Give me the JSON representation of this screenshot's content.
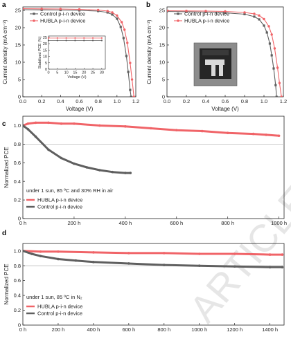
{
  "colors": {
    "hubla": "#f06468",
    "control": "#5f5f5f",
    "refline": "#bdbdbd"
  },
  "watermark": "ARTICLE",
  "chart_data": [
    {
      "id": "a",
      "panel_label": "a",
      "type": "line",
      "xlabel": "Voltage (V)",
      "ylabel": "Current density (mA cm⁻²)",
      "xlim": [
        0,
        1.2
      ],
      "ylim": [
        0,
        26
      ],
      "xticks": [
        0,
        0.2,
        0.4,
        0.6,
        0.8,
        1.0,
        1.2
      ],
      "xtick_labels": [
        "0.0",
        "0.2",
        "0.4",
        "0.6",
        "0.8",
        "1.0",
        "1.2"
      ],
      "yticks": [
        0,
        5,
        10,
        15,
        20,
        25
      ],
      "legend": "top-left",
      "series": [
        {
          "name": "Control p-i-n device",
          "color": "#5f5f5f",
          "x": [
            0,
            0.2,
            0.4,
            0.6,
            0.8,
            0.9,
            0.95,
            1.0,
            1.04,
            1.07,
            1.1,
            1.12,
            1.14,
            1.15
          ],
          "y": [
            25.2,
            25.15,
            25.1,
            25.0,
            24.8,
            24.4,
            23.8,
            22.6,
            20.2,
            17.0,
            11.8,
            7.2,
            2.0,
            0
          ]
        },
        {
          "name": "HUBLA p-i-n device",
          "color": "#f06468",
          "x": [
            0,
            0.2,
            0.4,
            0.6,
            0.8,
            0.9,
            0.95,
            1.0,
            1.05,
            1.08,
            1.11,
            1.14,
            1.16,
            1.18
          ],
          "y": [
            25.5,
            25.45,
            25.4,
            25.3,
            25.1,
            24.8,
            24.4,
            23.5,
            21.6,
            19.4,
            15.6,
            9.8,
            5.0,
            0
          ]
        }
      ],
      "inset": {
        "xlabel": "Voltage (V)",
        "ylabel": "Stabilized PCE (%)",
        "xlim": [
          0,
          32
        ],
        "ylim": [
          0,
          26
        ],
        "xticks": [
          0,
          5,
          10,
          15,
          20,
          25,
          30
        ],
        "yticks": [
          0,
          5,
          10,
          15,
          20,
          25
        ],
        "series": [
          {
            "name": "HUBLA p-i-n device",
            "color": "#f06468",
            "x": [
              0,
              5,
              10,
              15,
              20,
              25,
              30
            ],
            "y": [
              24.4,
              24.4,
              24.4,
              24.4,
              24.4,
              24.4,
              24.4
            ]
          },
          {
            "name": "Control p-i-n device",
            "color": "#5f5f5f",
            "x": [
              0,
              5,
              10,
              15,
              20,
              25,
              30
            ],
            "y": [
              22.5,
              22.5,
              22.5,
              22.5,
              22.5,
              22.5,
              22.5
            ]
          }
        ]
      }
    },
    {
      "id": "b",
      "panel_label": "b",
      "type": "line",
      "xlabel": "Voltage (V)",
      "ylabel": "Current density (mA cm⁻²)",
      "xlim": [
        0,
        1.2
      ],
      "ylim": [
        0,
        26
      ],
      "xticks": [
        0,
        0.2,
        0.4,
        0.6,
        0.8,
        1.0,
        1.2
      ],
      "xtick_labels": [
        "0.0",
        "0.2",
        "0.4",
        "0.6",
        "0.8",
        "1.0",
        "1.2"
      ],
      "yticks": [
        0,
        5,
        10,
        15,
        20,
        25
      ],
      "legend": "top-left",
      "series": [
        {
          "name": "Control p-i-n device",
          "color": "#5f5f5f",
          "x": [
            0,
            0.2,
            0.4,
            0.6,
            0.8,
            0.9,
            0.95,
            1.0,
            1.03,
            1.06,
            1.08,
            1.1,
            1.12,
            1.13
          ],
          "y": [
            24.7,
            24.6,
            24.5,
            24.3,
            23.9,
            23.2,
            22.4,
            20.6,
            18.6,
            15.4,
            12.0,
            8.2,
            3.4,
            0
          ]
        },
        {
          "name": "HUBLA p-i-n device",
          "color": "#f06468",
          "x": [
            0,
            0.2,
            0.4,
            0.6,
            0.8,
            0.9,
            0.95,
            1.0,
            1.05,
            1.08,
            1.11,
            1.14,
            1.16,
            1.18
          ],
          "y": [
            24.9,
            24.85,
            24.8,
            24.7,
            24.4,
            24.0,
            23.5,
            22.5,
            20.4,
            18.0,
            14.0,
            8.4,
            4.0,
            0
          ]
        }
      ],
      "inset_image": "device-photo"
    },
    {
      "id": "c",
      "panel_label": "c",
      "type": "line",
      "xlabel": "",
      "ylabel": "Normalized PCE",
      "xlim": [
        0,
        1020
      ],
      "ylim": [
        0,
        1.1
      ],
      "xticks": [
        0,
        200,
        400,
        600,
        800,
        1000
      ],
      "xtick_labels": [
        "0 h",
        "200 h",
        "400 h",
        "600 h",
        "800 h",
        "1000 h"
      ],
      "yticks": [
        0,
        0.2,
        0.4,
        0.6,
        0.8,
        1.0
      ],
      "ytick_labels": [
        "0",
        "0.2",
        "0.4",
        "0.6",
        "0.8",
        "1.0"
      ],
      "reference_line": 0.8,
      "annotation": "under 1 sun, 85 ºC and 30% RH in air",
      "legend": "bottom-left",
      "series": [
        {
          "name": "HUBLA p-i-n device",
          "color": "#f06468",
          "x": [
            0,
            20,
            50,
            100,
            150,
            200,
            300,
            400,
            500,
            600,
            700,
            800,
            900,
            950,
            1000
          ],
          "y": [
            1.0,
            1.02,
            1.03,
            1.03,
            1.02,
            1.02,
            1.0,
            0.99,
            0.97,
            0.95,
            0.94,
            0.92,
            0.91,
            0.9,
            0.89
          ]
        },
        {
          "name": "Control p-i-n device",
          "color": "#5f5f5f",
          "x": [
            0,
            20,
            50,
            100,
            150,
            200,
            250,
            300,
            350,
            400,
            420
          ],
          "y": [
            1.0,
            0.96,
            0.88,
            0.74,
            0.65,
            0.59,
            0.55,
            0.52,
            0.5,
            0.49,
            0.49
          ]
        }
      ]
    },
    {
      "id": "d",
      "panel_label": "d",
      "type": "line",
      "xlabel": "",
      "ylabel": "Normalized PCE",
      "xlim": [
        0,
        1480
      ],
      "ylim": [
        0,
        1.1
      ],
      "xticks": [
        0,
        200,
        400,
        600,
        800,
        1000,
        1200,
        1400
      ],
      "xtick_labels": [
        "0 h",
        "200 h",
        "400 h",
        "600 h",
        "800 h",
        "1000 h",
        "1200 h",
        "1400 h"
      ],
      "yticks": [
        0,
        0.2,
        0.4,
        0.6,
        0.8,
        1.0
      ],
      "ytick_labels": [
        "0",
        "0.2",
        "0.4",
        "0.6",
        "0.8",
        "1.0"
      ],
      "reference_line": 0.8,
      "annotation": "under 1 sun, 85 ºC in N₂",
      "legend": "bottom-left",
      "series": [
        {
          "name": "HUBLA p-i-n device",
          "color": "#f06468",
          "x": [
            0,
            100,
            200,
            400,
            600,
            800,
            1000,
            1200,
            1400,
            1470
          ],
          "y": [
            1.0,
            0.99,
            0.99,
            0.98,
            0.97,
            0.97,
            0.96,
            0.96,
            0.95,
            0.95
          ]
        },
        {
          "name": "Control p-i-n device",
          "color": "#5f5f5f",
          "x": [
            0,
            50,
            100,
            200,
            300,
            400,
            600,
            800,
            1000,
            1200,
            1400,
            1470
          ],
          "y": [
            1.0,
            0.96,
            0.93,
            0.89,
            0.87,
            0.85,
            0.83,
            0.81,
            0.8,
            0.79,
            0.78,
            0.78
          ]
        }
      ]
    }
  ]
}
